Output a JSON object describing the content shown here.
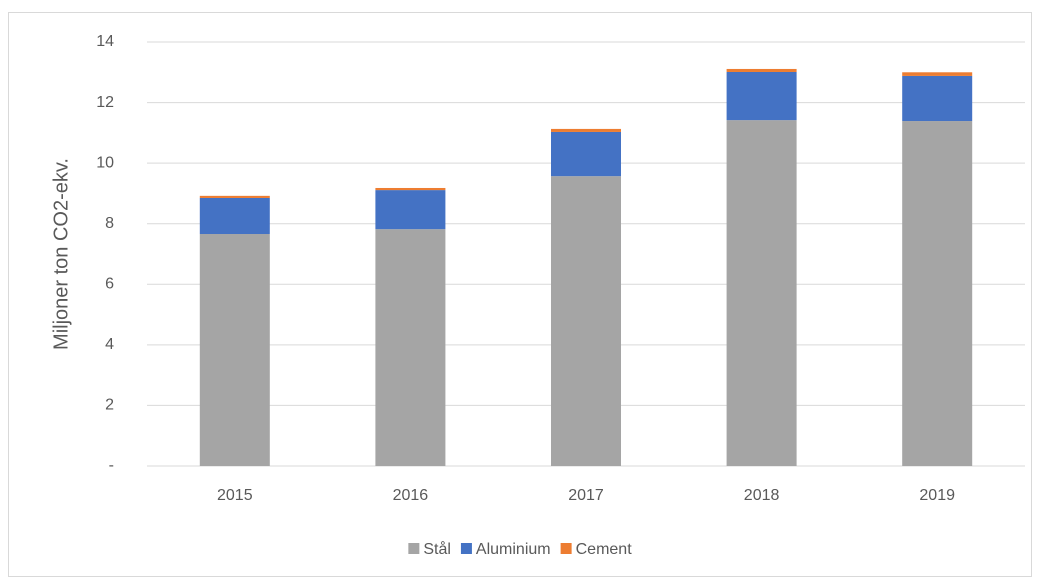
{
  "chart_data": {
    "type": "stacked-bar",
    "y_label": "Miljoner ton CO2-ekv.",
    "categories": [
      "2015",
      "2016",
      "2017",
      "2018",
      "2019"
    ],
    "series": [
      {
        "name": "Stål",
        "color": "#a5a5a5",
        "values": [
          7.66,
          7.82,
          9.57,
          11.42,
          11.39
        ]
      },
      {
        "name": "Aluminium",
        "color": "#4472c4",
        "values": [
          1.19,
          1.29,
          1.46,
          1.59,
          1.49
        ]
      },
      {
        "name": "Cement",
        "color": "#ed7d31",
        "values": [
          0.07,
          0.07,
          0.1,
          0.1,
          0.12
        ]
      }
    ],
    "ylim": [
      0,
      14
    ],
    "yticks": [
      {
        "value": 0,
        "label": "-"
      },
      2,
      4,
      6,
      8,
      10,
      12,
      14
    ],
    "grid": true,
    "legend": "bottom"
  }
}
